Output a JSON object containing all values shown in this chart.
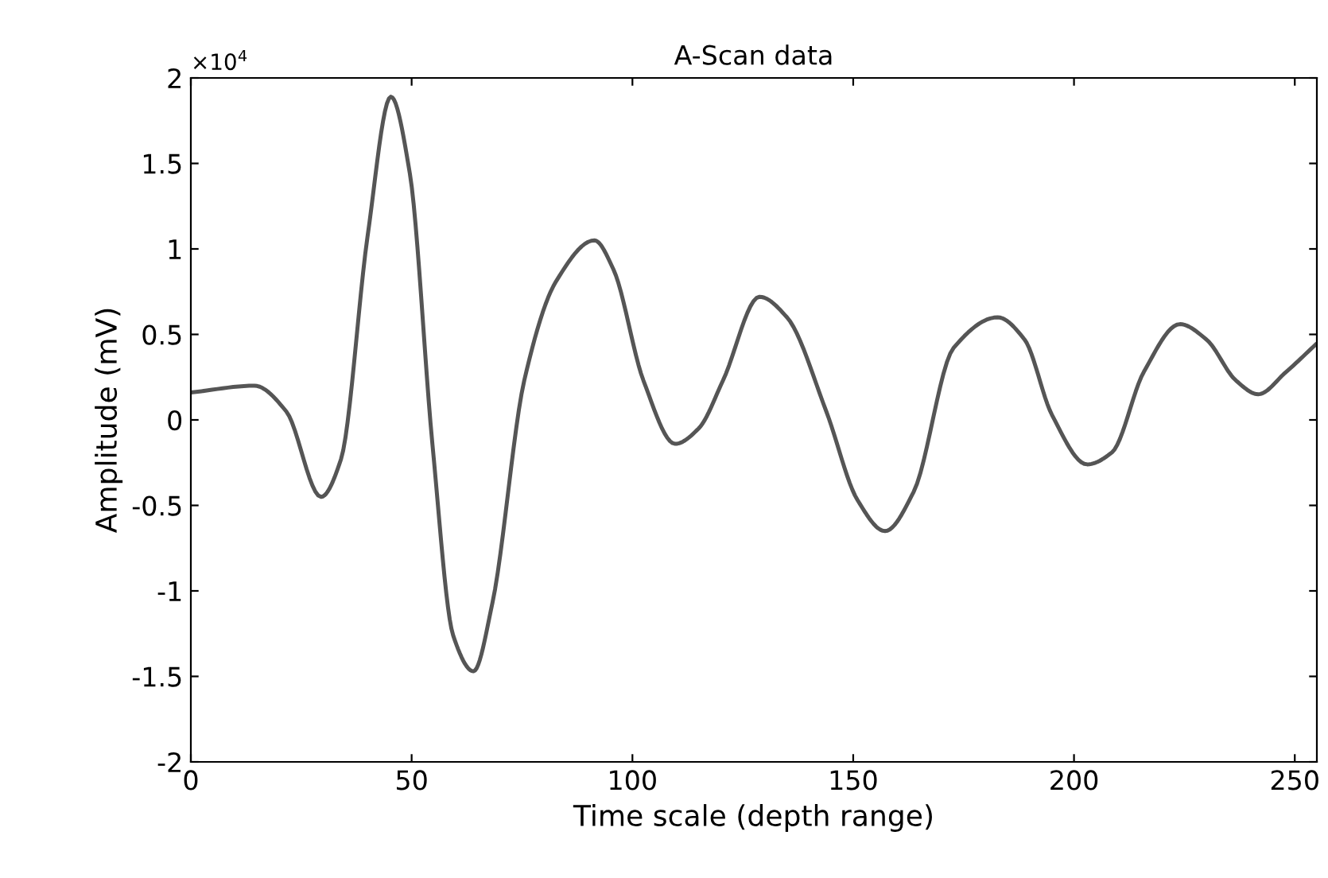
{
  "chart_data": {
    "type": "line",
    "title": "A-Scan data",
    "xlabel": "Time scale (depth range)",
    "ylabel": "Amplitude (mV)",
    "annotations": [
      "×10$^{4}$"
    ],
    "x": [
      0,
      14.4,
      21.6,
      29.5,
      34,
      40,
      45.3,
      49.6,
      54.7,
      59.4,
      64,
      68.3,
      75.5,
      82.7,
      91.4,
      95.7,
      102.5,
      109.7,
      115,
      120.5,
      128.8,
      135,
      143.9,
      151,
      157.2,
      163.7,
      172.7,
      182.7,
      188.8,
      195,
      203,
      208.6,
      215.8,
      224,
      230,
      236.7,
      241.7,
      248,
      254.7
    ],
    "series": [
      {
        "color": "#555555",
        "values": [
          0.16,
          0.2,
          0.05,
          -0.45,
          -0.23,
          1.07,
          1.89,
          1.44,
          -0.14,
          -1.26,
          -1.47,
          -1.07,
          0.23,
          0.81,
          1.05,
          0.88,
          0.23,
          -0.14,
          -0.05,
          0.23,
          0.72,
          0.6,
          0.05,
          -0.47,
          -0.65,
          -0.42,
          0.42,
          0.6,
          0.47,
          0.03,
          -0.26,
          -0.19,
          0.28,
          0.56,
          0.47,
          0.23,
          0.15,
          0.28,
          0.44
        ]
      }
    ],
    "xlim": [
      0,
      255
    ],
    "xticks": [
      0,
      50,
      100,
      150,
      200,
      250
    ],
    "ylim": [
      -2,
      2
    ],
    "yticks": [
      -2,
      -1.5,
      -1,
      -0.5,
      0,
      0.5,
      1,
      1.5,
      2
    ],
    "grid": false,
    "legend": false,
    "marker": "none",
    "line_style": "solid"
  }
}
